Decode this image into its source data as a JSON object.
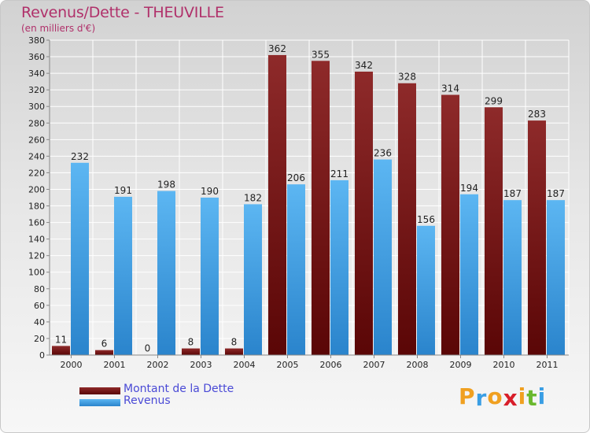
{
  "chart_data": {
    "type": "bar",
    "title": "Revenus/Dette - THEUVILLE",
    "subtitle": "(en milliers d'€)",
    "categories": [
      "2000",
      "2001",
      "2002",
      "2003",
      "2004",
      "2005",
      "2006",
      "2007",
      "2008",
      "2009",
      "2010",
      "2011"
    ],
    "series": [
      {
        "name": "Montant de la Dette",
        "color": "#7a1414",
        "values": [
          11,
          6,
          0,
          8,
          8,
          362,
          355,
          342,
          328,
          314,
          299,
          283
        ]
      },
      {
        "name": "Revenus",
        "color": "#3a9ee4",
        "values": [
          232,
          191,
          198,
          190,
          182,
          206,
          211,
          236,
          156,
          194,
          187,
          187
        ]
      }
    ],
    "ylim": [
      0,
      380
    ],
    "yticks": [
      0,
      20,
      40,
      60,
      80,
      100,
      120,
      140,
      160,
      180,
      200,
      220,
      240,
      260,
      280,
      300,
      320,
      340,
      360,
      380
    ],
    "grid": true,
    "legend": "bottom-left"
  },
  "legend": {
    "debt_label": "Montant de la Dette",
    "revenue_label": "Revenus"
  },
  "logo": {
    "text": "Proxiti",
    "letter_colors": [
      "#f0a020",
      "#3a9ee4",
      "#f0a020",
      "#d81e2a",
      "#f0a020",
      "#6ab82e",
      "#3a9ee4"
    ]
  }
}
